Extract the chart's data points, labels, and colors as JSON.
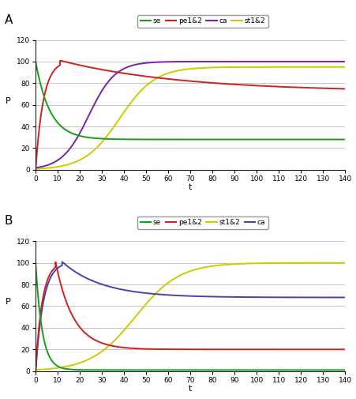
{
  "panel_A": {
    "title": "A",
    "legend_order": [
      "se",
      "pe1&2",
      "ca",
      "st1&2"
    ],
    "colors": {
      "se": "#1a9c1a",
      "pe1&2": "#cc2222",
      "ca": "#7722aa",
      "st1&2": "#cccc00"
    }
  },
  "panel_B": {
    "title": "B",
    "legend_order": [
      "se",
      "pe1&2",
      "st1&2",
      "ca"
    ],
    "colors": {
      "se": "#1a9c1a",
      "pe1&2": "#cc2222",
      "ca": "#4444aa",
      "st1&2": "#cccc00"
    }
  },
  "xlim": [
    0,
    140
  ],
  "ylim": [
    0,
    120
  ],
  "xticks": [
    0,
    10,
    20,
    30,
    40,
    50,
    60,
    70,
    80,
    90,
    100,
    110,
    120,
    130,
    140
  ],
  "yticks": [
    0,
    20,
    40,
    60,
    80,
    100,
    120
  ],
  "xlabel": "t",
  "ylabel": "P",
  "background": "#ffffff",
  "grid_color": "#bbbbbb",
  "line_width": 1.4
}
